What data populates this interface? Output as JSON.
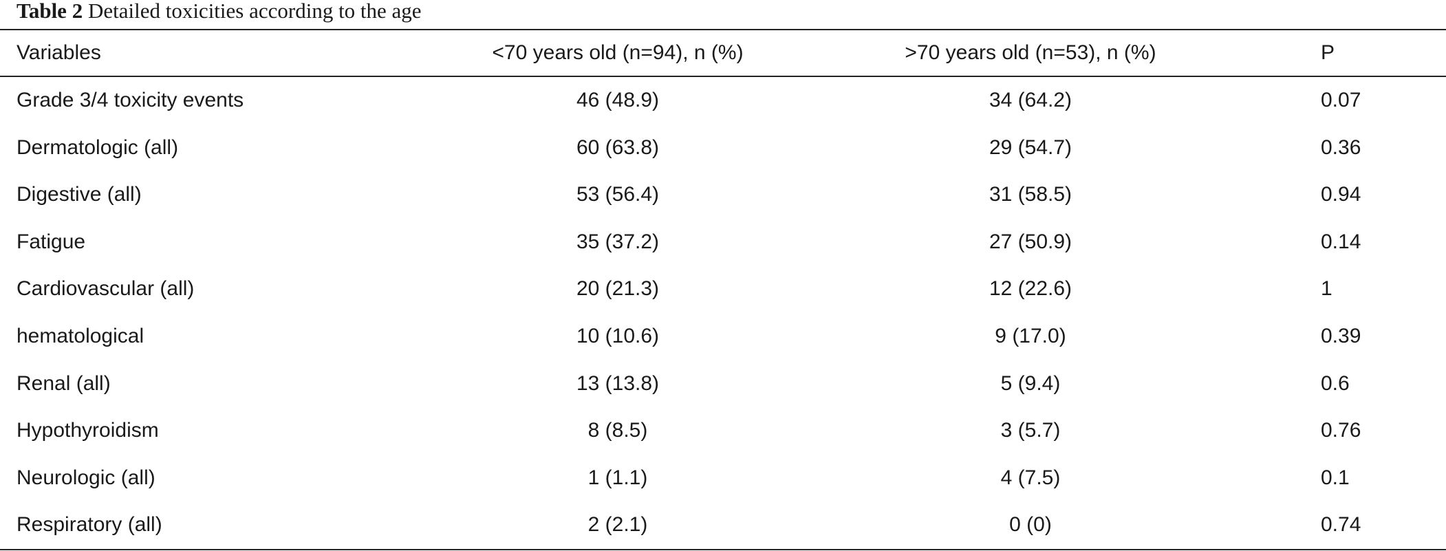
{
  "caption": {
    "label": "Table 2",
    "text": "Detailed toxicities according to the age"
  },
  "table": {
    "headers": [
      "Variables",
      "<70 years old (n=94), n (%)",
      ">70 years old (n=53), n (%)",
      "P"
    ],
    "rows": [
      [
        "Grade 3/4 toxicity events",
        "46 (48.9)",
        "34 (64.2)",
        "0.07"
      ],
      [
        "Dermatologic (all)",
        "60 (63.8)",
        "29 (54.7)",
        "0.36"
      ],
      [
        "Digestive (all)",
        "53 (56.4)",
        "31 (58.5)",
        "0.94"
      ],
      [
        "Fatigue",
        "35 (37.2)",
        "27 (50.9)",
        "0.14"
      ],
      [
        "Cardiovascular (all)",
        "20 (21.3)",
        "12 (22.6)",
        "1"
      ],
      [
        "hematological",
        "10 (10.6)",
        "9 (17.0)",
        "0.39"
      ],
      [
        "Renal (all)",
        "13 (13.8)",
        "5 (9.4)",
        "0.6"
      ],
      [
        "Hypothyroidism",
        "8 (8.5)",
        "3 (5.7)",
        "0.76"
      ],
      [
        "Neurologic (all)",
        "1 (1.1)",
        "4 (7.5)",
        "0.1"
      ],
      [
        "Respiratory (all)",
        "2 (2.1)",
        "0 (0)",
        "0.74"
      ]
    ]
  }
}
